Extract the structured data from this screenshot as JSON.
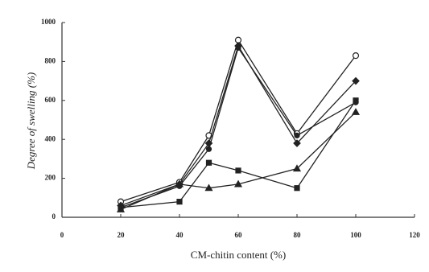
{
  "chart_data": {
    "type": "line",
    "xlabel": "CM-chitin content (%)",
    "ylabel": "Degree of swelling (%)",
    "x": [
      20,
      40,
      50,
      60,
      80,
      100
    ],
    "series": [
      {
        "color": "#222222",
        "marker": "circle-open",
        "values": [
          80,
          180,
          420,
          910,
          430,
          830
        ]
      },
      {
        "color": "#222222",
        "marker": "diamond",
        "values": [
          60,
          170,
          380,
          880,
          380,
          700
        ]
      },
      {
        "color": "#222222",
        "marker": "circle",
        "values": [
          50,
          160,
          350,
          870,
          420,
          590
        ]
      },
      {
        "color": "#222222",
        "marker": "square",
        "values": [
          50,
          80,
          280,
          240,
          150,
          600
        ]
      },
      {
        "color": "#222222",
        "marker": "triangle",
        "values": [
          40,
          170,
          150,
          170,
          250,
          540
        ]
      }
    ],
    "xlim": [
      0,
      120
    ],
    "xticks": [
      0,
      20,
      40,
      60,
      80,
      100,
      120
    ],
    "ylim": [
      0,
      1000
    ],
    "yticks": [
      0,
      200,
      400,
      600,
      800,
      1000
    ],
    "grid": false
  }
}
